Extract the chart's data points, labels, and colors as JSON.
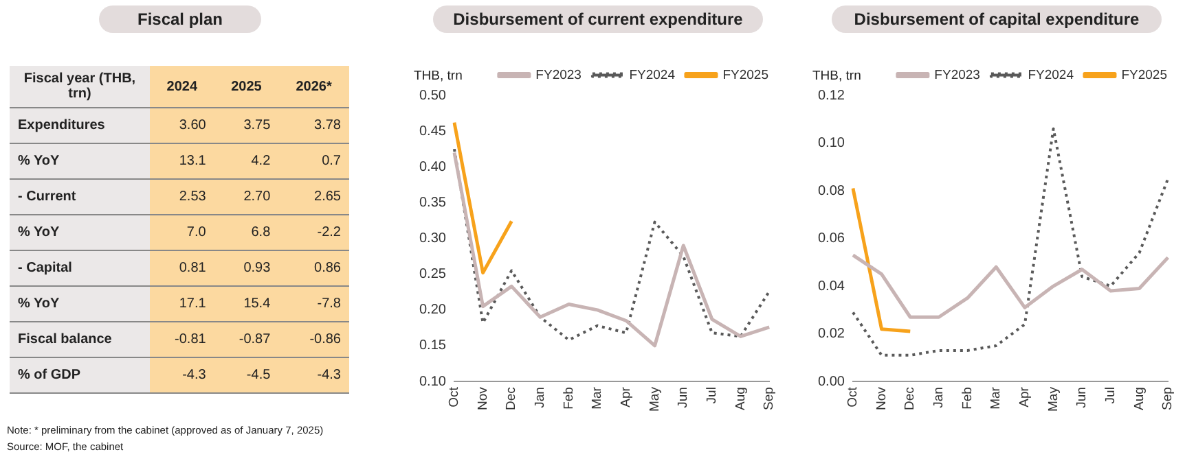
{
  "chart_data": [
    {
      "type": "other",
      "title": "Fiscal plan",
      "xlabel": "Fiscal year (THB, trn)",
      "categories": [
        "2024",
        "2025",
        "2026*"
      ],
      "y_categories": [
        "Expenditures",
        "% YoY",
        "- Current",
        "% YoY",
        "- Capital",
        "% YoY",
        "Fiscal balance",
        "% of GDP"
      ],
      "cell_labels": [
        [
          "3.60",
          "3.75",
          "3.78"
        ],
        [
          "13.1",
          "4.2",
          "0.7"
        ],
        [
          "2.53",
          "2.70",
          "2.65"
        ],
        [
          "7.0",
          "6.8",
          "-2.2"
        ],
        [
          "0.81",
          "0.93",
          "0.86"
        ],
        [
          "17.1",
          "15.4",
          "-7.8"
        ],
        [
          "-0.81",
          "-0.87",
          "-0.86"
        ],
        [
          "-4.3",
          "-4.5",
          "-4.3"
        ]
      ],
      "annotations": [
        "Note: * preliminary from the cabinet (approved as of January 7, 2025)",
        "Source: MOF, the cabinet"
      ]
    },
    {
      "type": "line",
      "title": "Disbursement of current expenditure",
      "ylabel": "THB, trn",
      "legend": "top",
      "categories": [
        "Oct",
        "Nov",
        "Dec",
        "Jan",
        "Feb",
        "Mar",
        "Apr",
        "May",
        "Jun",
        "Jul",
        "Aug",
        "Sep"
      ],
      "ylim": [
        0.1,
        0.5
      ],
      "yticks": [
        {
          "value": 0.1,
          "label": "0.10"
        },
        {
          "value": 0.15,
          "label": "0.15"
        },
        {
          "value": 0.2,
          "label": "0.20"
        },
        {
          "value": 0.25,
          "label": "0.25"
        },
        {
          "value": 0.3,
          "label": "0.30"
        },
        {
          "value": 0.35,
          "label": "0.35"
        },
        {
          "value": 0.4,
          "label": "0.40"
        },
        {
          "value": 0.45,
          "label": "0.45"
        },
        {
          "value": 0.5,
          "label": "0.50"
        }
      ],
      "series": [
        {
          "name": "FY2023",
          "color": "#c8b4b4",
          "line_style": "solid",
          "values": [
            0.42,
            0.205,
            0.233,
            0.19,
            0.208,
            0.2,
            0.185,
            0.15,
            0.29,
            0.187,
            0.163,
            0.176
          ]
        },
        {
          "name": "FY2024",
          "color": "#595959",
          "line_style": "dotted",
          "values": [
            0.425,
            0.182,
            0.255,
            0.19,
            0.158,
            0.178,
            0.168,
            0.323,
            0.275,
            0.168,
            0.163,
            0.226
          ]
        },
        {
          "name": "FY2025",
          "color": "#f7a21b",
          "line_style": "solid",
          "values": [
            0.462,
            0.252,
            0.324,
            null,
            null,
            null,
            null,
            null,
            null,
            null,
            null,
            null
          ]
        }
      ]
    },
    {
      "type": "line",
      "title": "Disbursement of capital expenditure",
      "ylabel": "THB, trn",
      "legend": "top",
      "categories": [
        "Oct",
        "Nov",
        "Dec",
        "Jan",
        "Feb",
        "Mar",
        "Apr",
        "May",
        "Jun",
        "Jul",
        "Aug",
        "Sep"
      ],
      "ylim": [
        0,
        0.12
      ],
      "yticks": [
        {
          "value": 0,
          "label": "0.00"
        },
        {
          "value": 0.02,
          "label": "0.02"
        },
        {
          "value": 0.04,
          "label": "0.04"
        },
        {
          "value": 0.06,
          "label": "0.06"
        },
        {
          "value": 0.08,
          "label": "0.08"
        },
        {
          "value": 0.1,
          "label": "0.10"
        },
        {
          "value": 0.12,
          "label": "0.12"
        }
      ],
      "series": [
        {
          "name": "FY2023",
          "color": "#c8b4b4",
          "line_style": "solid",
          "values": [
            0.053,
            0.045,
            0.027,
            0.027,
            0.035,
            0.048,
            0.031,
            0.04,
            0.047,
            0.038,
            0.039,
            0.052
          ]
        },
        {
          "name": "FY2024",
          "color": "#595959",
          "line_style": "dotted",
          "values": [
            0.029,
            0.011,
            0.011,
            0.013,
            0.013,
            0.015,
            0.024,
            0.106,
            0.044,
            0.04,
            0.054,
            0.085
          ]
        },
        {
          "name": "FY2025",
          "color": "#f7a21b",
          "line_style": "solid",
          "values": [
            0.081,
            0.022,
            0.021,
            null,
            null,
            null,
            null,
            null,
            null,
            null,
            null,
            null
          ]
        }
      ]
    }
  ]
}
